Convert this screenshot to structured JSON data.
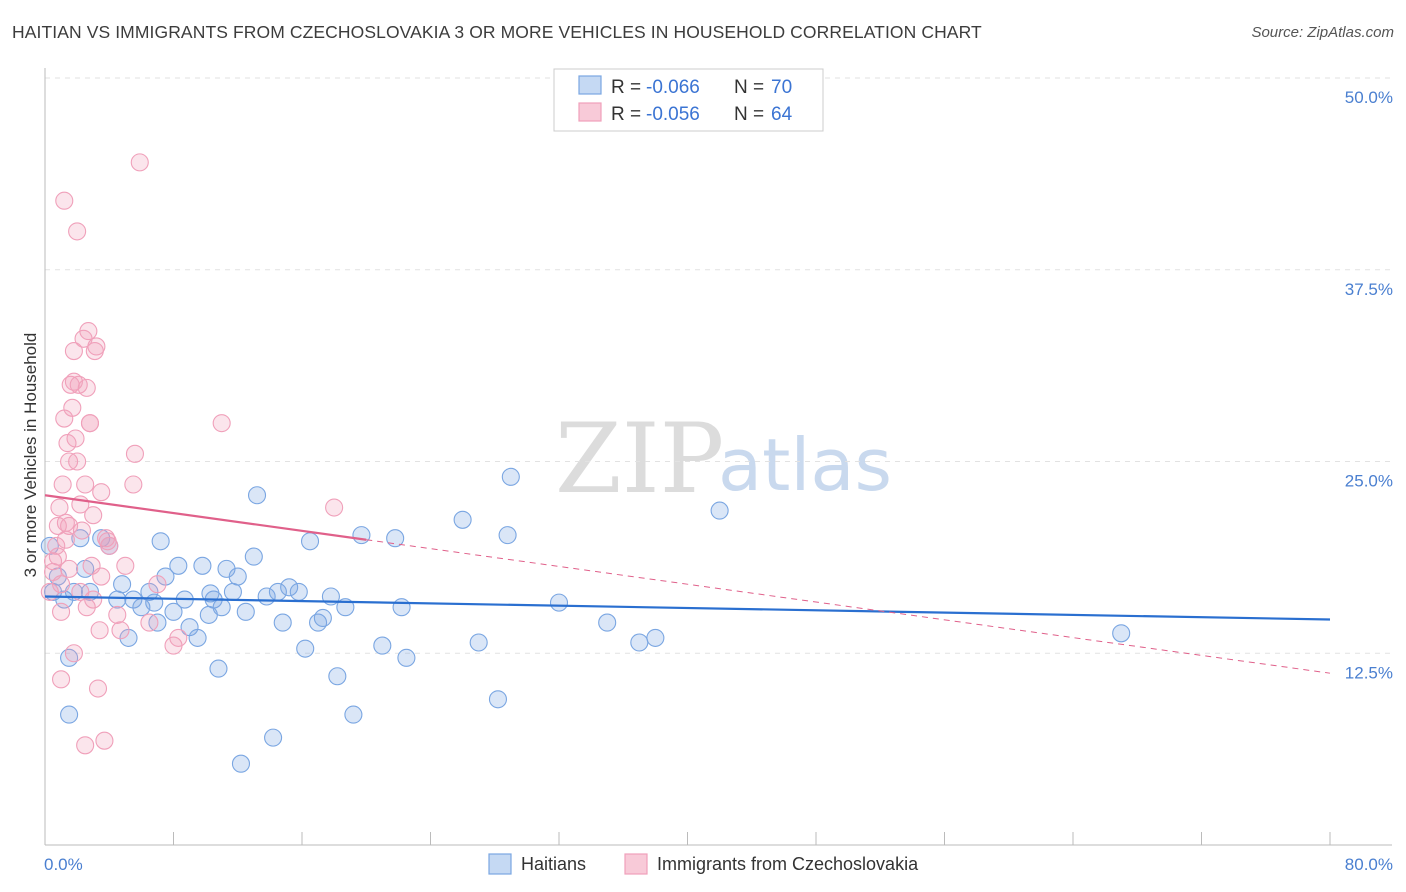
{
  "title": "HAITIAN VS IMMIGRANTS FROM CZECHOSLOVAKIA 3 OR MORE VEHICLES IN HOUSEHOLD CORRELATION CHART",
  "source": "Source: ZipAtlas.com",
  "watermark": {
    "zip": "ZIP",
    "atlas": "atlas"
  },
  "legend": {
    "r_label": "R =",
    "n_label": "N =",
    "series": [
      {
        "r": "-0.066",
        "n": "70"
      },
      {
        "r": "-0.056",
        "n": "64"
      }
    ]
  },
  "chart_data": {
    "type": "scatter",
    "title": "HAITIAN VS IMMIGRANTS FROM CZECHOSLOVAKIA 3 OR MORE VEHICLES IN HOUSEHOLD CORRELATION CHART",
    "xlabel": "",
    "ylabel": "3 or more Vehicles in Household",
    "xlim": [
      0,
      80
    ],
    "ylim": [
      0,
      50
    ],
    "x_tick_labels": [
      "0.0%",
      "80.0%"
    ],
    "y_ticks": [
      12.5,
      25.0,
      37.5,
      50.0
    ],
    "y_tick_labels": [
      "12.5%",
      "25.0%",
      "37.5%",
      "50.0%"
    ],
    "grid": true,
    "series": [
      {
        "name": "Haitians",
        "color": "#7aa6e2",
        "line_color": "#2a6fd0",
        "trend": {
          "x": [
            0,
            80
          ],
          "y": [
            16.2,
            14.7
          ]
        },
        "points": [
          [
            0.5,
            16.5
          ],
          [
            0.8,
            17.5
          ],
          [
            1.2,
            16.0
          ],
          [
            1.5,
            8.5
          ],
          [
            1.5,
            12.2
          ],
          [
            1.8,
            16.5
          ],
          [
            2.2,
            20.0
          ],
          [
            2.5,
            18.0
          ],
          [
            2.8,
            16.5
          ],
          [
            3.5,
            20.0
          ],
          [
            4.0,
            19.5
          ],
          [
            4.5,
            16.0
          ],
          [
            4.8,
            17.0
          ],
          [
            5.2,
            13.5
          ],
          [
            5.5,
            16.0
          ],
          [
            6.0,
            15.5
          ],
          [
            6.5,
            16.5
          ],
          [
            6.8,
            15.8
          ],
          [
            7.0,
            14.5
          ],
          [
            7.2,
            19.8
          ],
          [
            7.5,
            17.5
          ],
          [
            8.0,
            15.2
          ],
          [
            8.3,
            18.2
          ],
          [
            8.7,
            16.0
          ],
          [
            9.0,
            14.2
          ],
          [
            9.5,
            13.5
          ],
          [
            9.8,
            18.2
          ],
          [
            10.2,
            15.0
          ],
          [
            10.5,
            16.0
          ],
          [
            10.8,
            11.5
          ],
          [
            11.0,
            15.5
          ],
          [
            11.3,
            18.0
          ],
          [
            11.7,
            16.5
          ],
          [
            12.0,
            17.5
          ],
          [
            12.5,
            15.2
          ],
          [
            13.0,
            18.8
          ],
          [
            13.2,
            22.8
          ],
          [
            13.8,
            16.2
          ],
          [
            14.2,
            7.0
          ],
          [
            14.5,
            16.5
          ],
          [
            14.8,
            14.5
          ],
          [
            15.2,
            16.8
          ],
          [
            15.8,
            16.5
          ],
          [
            16.2,
            12.8
          ],
          [
            16.5,
            19.8
          ],
          [
            17.0,
            14.5
          ],
          [
            17.3,
            14.8
          ],
          [
            17.8,
            16.2
          ],
          [
            18.2,
            11.0
          ],
          [
            18.7,
            15.5
          ],
          [
            19.2,
            8.5
          ],
          [
            19.7,
            20.2
          ],
          [
            21.0,
            13.0
          ],
          [
            21.8,
            20.0
          ],
          [
            22.2,
            15.5
          ],
          [
            22.5,
            12.2
          ],
          [
            26.0,
            21.2
          ],
          [
            27.0,
            13.2
          ],
          [
            28.2,
            9.5
          ],
          [
            28.8,
            20.2
          ],
          [
            29.0,
            24.0
          ],
          [
            32.0,
            15.8
          ],
          [
            35.0,
            14.5
          ],
          [
            37.0,
            13.2
          ],
          [
            38.0,
            13.5
          ],
          [
            42.0,
            21.8
          ],
          [
            67.0,
            13.8
          ],
          [
            0.3,
            19.5
          ],
          [
            12.2,
            5.3
          ],
          [
            10.3,
            16.4
          ]
        ]
      },
      {
        "name": "Immigrants from Czechoslovakia",
        "color": "#f0a0ba",
        "line_color": "#e0608a",
        "trend": {
          "x": [
            0,
            20
          ],
          "y": [
            22.8,
            19.9
          ]
        },
        "trend_dashed": {
          "x": [
            20,
            80
          ],
          "y": [
            19.9,
            11.2
          ]
        },
        "points": [
          [
            0.3,
            16.5
          ],
          [
            0.5,
            17.8
          ],
          [
            0.5,
            18.5
          ],
          [
            0.7,
            19.5
          ],
          [
            0.8,
            20.8
          ],
          [
            0.9,
            22.0
          ],
          [
            1.0,
            15.2
          ],
          [
            1.0,
            17.0
          ],
          [
            1.0,
            10.8
          ],
          [
            1.1,
            23.5
          ],
          [
            1.2,
            27.8
          ],
          [
            1.3,
            21.0
          ],
          [
            1.4,
            26.2
          ],
          [
            1.5,
            25.0
          ],
          [
            1.5,
            20.8
          ],
          [
            1.6,
            30.0
          ],
          [
            1.7,
            28.5
          ],
          [
            1.8,
            30.2
          ],
          [
            1.8,
            32.2
          ],
          [
            1.8,
            12.5
          ],
          [
            1.9,
            26.5
          ],
          [
            2.0,
            25.0
          ],
          [
            2.1,
            30.0
          ],
          [
            2.2,
            22.2
          ],
          [
            2.3,
            20.5
          ],
          [
            2.4,
            33.0
          ],
          [
            2.5,
            23.5
          ],
          [
            2.6,
            29.8
          ],
          [
            2.7,
            33.5
          ],
          [
            2.8,
            27.5
          ],
          [
            2.8,
            27.5
          ],
          [
            2.9,
            18.2
          ],
          [
            3.0,
            21.5
          ],
          [
            3.1,
            32.2
          ],
          [
            3.2,
            32.5
          ],
          [
            3.5,
            23.0
          ],
          [
            3.5,
            17.5
          ],
          [
            3.8,
            20.0
          ],
          [
            4.0,
            19.5
          ],
          [
            4.5,
            15.0
          ],
          [
            4.7,
            14.0
          ],
          [
            5.5,
            23.5
          ],
          [
            5.6,
            25.5
          ],
          [
            5.9,
            44.5
          ],
          [
            6.5,
            14.5
          ],
          [
            7.0,
            17.0
          ],
          [
            8.0,
            13.0
          ],
          [
            8.3,
            13.5
          ],
          [
            11.0,
            27.5
          ],
          [
            18.0,
            22.0
          ],
          [
            1.2,
            42.0
          ],
          [
            2.0,
            40.0
          ],
          [
            2.5,
            6.5
          ],
          [
            3.3,
            10.2
          ],
          [
            3.7,
            6.8
          ],
          [
            3.0,
            16.0
          ],
          [
            1.5,
            18.0
          ],
          [
            2.2,
            16.5
          ],
          [
            3.4,
            14.0
          ],
          [
            3.9,
            19.8
          ],
          [
            0.8,
            18.8
          ],
          [
            1.3,
            19.9
          ],
          [
            2.6,
            15.5
          ],
          [
            5.0,
            18.2
          ]
        ]
      }
    ]
  }
}
